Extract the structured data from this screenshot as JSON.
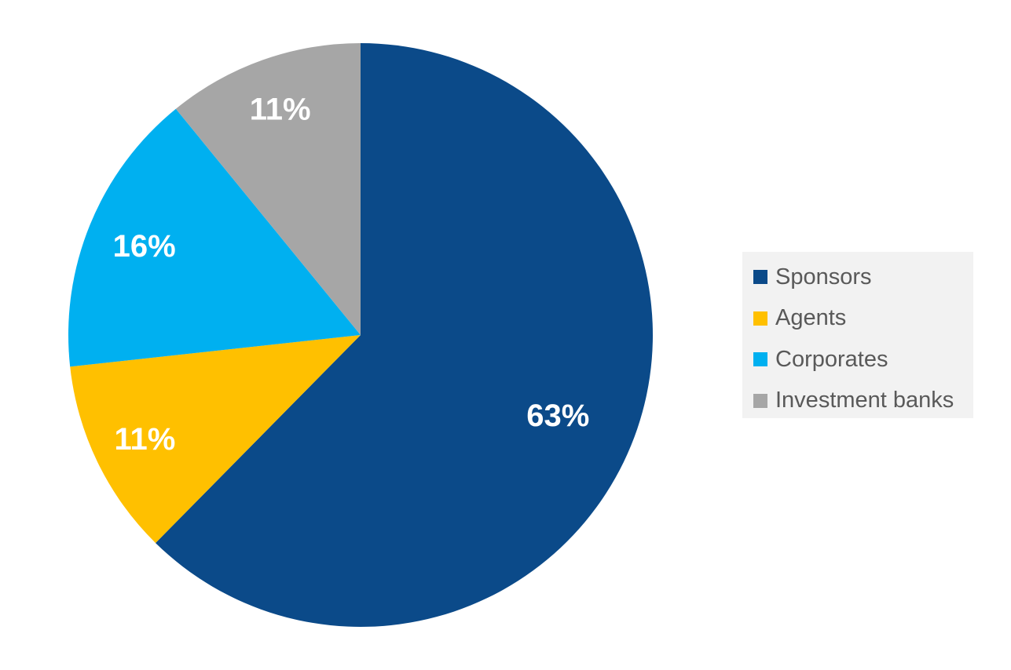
{
  "chart_data": {
    "type": "pie",
    "title": "",
    "labels": [
      "Sponsors",
      "Agents",
      "Corporates",
      "Investment banks"
    ],
    "values": [
      63,
      11,
      16,
      11
    ],
    "value_labels": [
      "63%",
      "11%",
      "16%",
      "11%"
    ],
    "colors": [
      "#0b4a89",
      "#ffc000",
      "#00b0f0",
      "#a6a6a6"
    ],
    "start": "12 o'clock",
    "direction": "clockwise",
    "legend_position": "right"
  }
}
